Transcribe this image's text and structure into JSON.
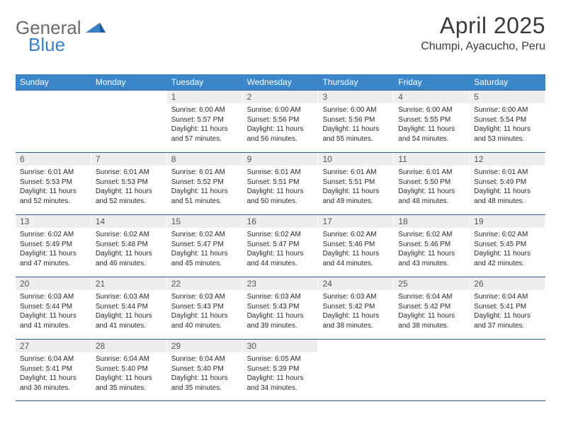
{
  "logo": {
    "text1": "General",
    "text2": "Blue"
  },
  "title": "April 2025",
  "location": "Chumpi, Ayacucho, Peru",
  "colors": {
    "header_bg": "#3a86c8",
    "header_text": "#ffffff",
    "row_border": "#2e5f8f",
    "daynum_bg": "#eeeeee",
    "daynum_text": "#555555",
    "body_text": "#2a2a2a",
    "logo_gray": "#6a6a6a",
    "logo_blue": "#3a7fc4"
  },
  "weekdays": [
    "Sunday",
    "Monday",
    "Tuesday",
    "Wednesday",
    "Thursday",
    "Friday",
    "Saturday"
  ],
  "weeks": [
    [
      null,
      null,
      {
        "n": "1",
        "sr": "6:00 AM",
        "ss": "5:57 PM",
        "dl": "11 hours and 57 minutes."
      },
      {
        "n": "2",
        "sr": "6:00 AM",
        "ss": "5:56 PM",
        "dl": "11 hours and 56 minutes."
      },
      {
        "n": "3",
        "sr": "6:00 AM",
        "ss": "5:56 PM",
        "dl": "11 hours and 55 minutes."
      },
      {
        "n": "4",
        "sr": "6:00 AM",
        "ss": "5:55 PM",
        "dl": "11 hours and 54 minutes."
      },
      {
        "n": "5",
        "sr": "6:00 AM",
        "ss": "5:54 PM",
        "dl": "11 hours and 53 minutes."
      }
    ],
    [
      {
        "n": "6",
        "sr": "6:01 AM",
        "ss": "5:53 PM",
        "dl": "11 hours and 52 minutes."
      },
      {
        "n": "7",
        "sr": "6:01 AM",
        "ss": "5:53 PM",
        "dl": "11 hours and 52 minutes."
      },
      {
        "n": "8",
        "sr": "6:01 AM",
        "ss": "5:52 PM",
        "dl": "11 hours and 51 minutes."
      },
      {
        "n": "9",
        "sr": "6:01 AM",
        "ss": "5:51 PM",
        "dl": "11 hours and 50 minutes."
      },
      {
        "n": "10",
        "sr": "6:01 AM",
        "ss": "5:51 PM",
        "dl": "11 hours and 49 minutes."
      },
      {
        "n": "11",
        "sr": "6:01 AM",
        "ss": "5:50 PM",
        "dl": "11 hours and 48 minutes."
      },
      {
        "n": "12",
        "sr": "6:01 AM",
        "ss": "5:49 PM",
        "dl": "11 hours and 48 minutes."
      }
    ],
    [
      {
        "n": "13",
        "sr": "6:02 AM",
        "ss": "5:49 PM",
        "dl": "11 hours and 47 minutes."
      },
      {
        "n": "14",
        "sr": "6:02 AM",
        "ss": "5:48 PM",
        "dl": "11 hours and 46 minutes."
      },
      {
        "n": "15",
        "sr": "6:02 AM",
        "ss": "5:47 PM",
        "dl": "11 hours and 45 minutes."
      },
      {
        "n": "16",
        "sr": "6:02 AM",
        "ss": "5:47 PM",
        "dl": "11 hours and 44 minutes."
      },
      {
        "n": "17",
        "sr": "6:02 AM",
        "ss": "5:46 PM",
        "dl": "11 hours and 44 minutes."
      },
      {
        "n": "18",
        "sr": "6:02 AM",
        "ss": "5:46 PM",
        "dl": "11 hours and 43 minutes."
      },
      {
        "n": "19",
        "sr": "6:02 AM",
        "ss": "5:45 PM",
        "dl": "11 hours and 42 minutes."
      }
    ],
    [
      {
        "n": "20",
        "sr": "6:03 AM",
        "ss": "5:44 PM",
        "dl": "11 hours and 41 minutes."
      },
      {
        "n": "21",
        "sr": "6:03 AM",
        "ss": "5:44 PM",
        "dl": "11 hours and 41 minutes."
      },
      {
        "n": "22",
        "sr": "6:03 AM",
        "ss": "5:43 PM",
        "dl": "11 hours and 40 minutes."
      },
      {
        "n": "23",
        "sr": "6:03 AM",
        "ss": "5:43 PM",
        "dl": "11 hours and 39 minutes."
      },
      {
        "n": "24",
        "sr": "6:03 AM",
        "ss": "5:42 PM",
        "dl": "11 hours and 38 minutes."
      },
      {
        "n": "25",
        "sr": "6:04 AM",
        "ss": "5:42 PM",
        "dl": "11 hours and 38 minutes."
      },
      {
        "n": "26",
        "sr": "6:04 AM",
        "ss": "5:41 PM",
        "dl": "11 hours and 37 minutes."
      }
    ],
    [
      {
        "n": "27",
        "sr": "6:04 AM",
        "ss": "5:41 PM",
        "dl": "11 hours and 36 minutes."
      },
      {
        "n": "28",
        "sr": "6:04 AM",
        "ss": "5:40 PM",
        "dl": "11 hours and 35 minutes."
      },
      {
        "n": "29",
        "sr": "6:04 AM",
        "ss": "5:40 PM",
        "dl": "11 hours and 35 minutes."
      },
      {
        "n": "30",
        "sr": "6:05 AM",
        "ss": "5:39 PM",
        "dl": "11 hours and 34 minutes."
      },
      null,
      null,
      null
    ]
  ],
  "labels": {
    "sunrise": "Sunrise:",
    "sunset": "Sunset:",
    "daylight": "Daylight:"
  }
}
